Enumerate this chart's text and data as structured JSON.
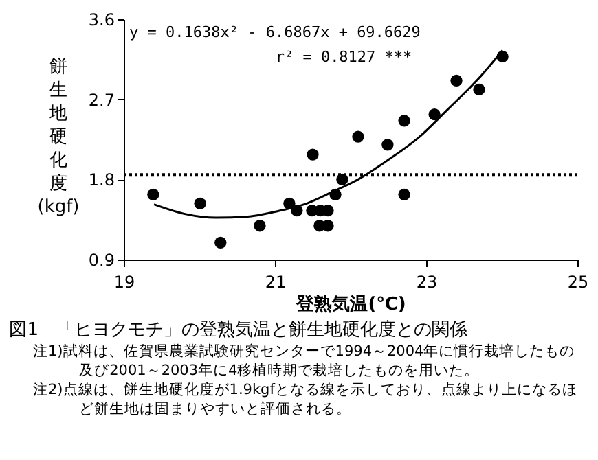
{
  "chart_data": {
    "type": "scatter",
    "title": "図1　「ヒヨクモチ」の登熟気温と餅生地硬化度との関係",
    "xlabel": "登熟気温(℃)",
    "ylabel": "餅生地硬化度(kgf)",
    "xlim": [
      19,
      25
    ],
    "xticks": [
      19,
      21,
      23,
      25
    ],
    "ylim": [
      0.9,
      3.6
    ],
    "yticks": [
      0.9,
      1.8,
      2.7,
      3.6
    ],
    "series": [
      {
        "type": "scatter",
        "marker": "circle",
        "color": "#000000",
        "x": [
          19.39,
          20.01,
          20.28,
          20.8,
          21.19,
          21.29,
          21.5,
          21.49,
          21.6,
          21.7,
          21.59,
          21.7,
          21.8,
          21.89,
          22.1,
          22.49,
          22.71,
          22.71,
          23.11,
          23.4,
          23.7,
          24.01
        ],
        "values": [
          1.63,
          1.53,
          1.09,
          1.28,
          1.53,
          1.45,
          2.08,
          1.45,
          1.45,
          1.45,
          1.28,
          1.28,
          1.63,
          1.8,
          2.28,
          2.19,
          2.46,
          1.63,
          2.53,
          2.91,
          2.81,
          3.18
        ]
      },
      {
        "type": "line",
        "color": "#000000",
        "x": [
          19.4,
          19.82,
          20.22,
          20.62,
          21.02,
          21.42,
          21.76,
          22.1,
          22.5,
          22.9,
          23.29,
          23.69,
          24.01
        ],
        "values": [
          1.52,
          1.41,
          1.37,
          1.38,
          1.44,
          1.53,
          1.66,
          1.8,
          2.02,
          2.27,
          2.59,
          2.93,
          3.25
        ]
      }
    ],
    "ref_lines": [
      {
        "axis": "y",
        "value": 1.85,
        "color": "#000000",
        "line_style": "dotted"
      }
    ],
    "annotations": [
      "y = 0.1638x² - 6.6867x + 69.6629",
      "r² = 0.8127 ***",
      "注1)試料は、佐賀県農業試験研究センターで1994～2004年に慣行栽培したもの及び2001～2003年に4移植時期で栽培したものを用いた。",
      "注2)点線は、餅生地硬化度が1.9kgfとなる線を示しており、点線より上になるほど餅生地は固まりやすいと評価される。"
    ]
  }
}
